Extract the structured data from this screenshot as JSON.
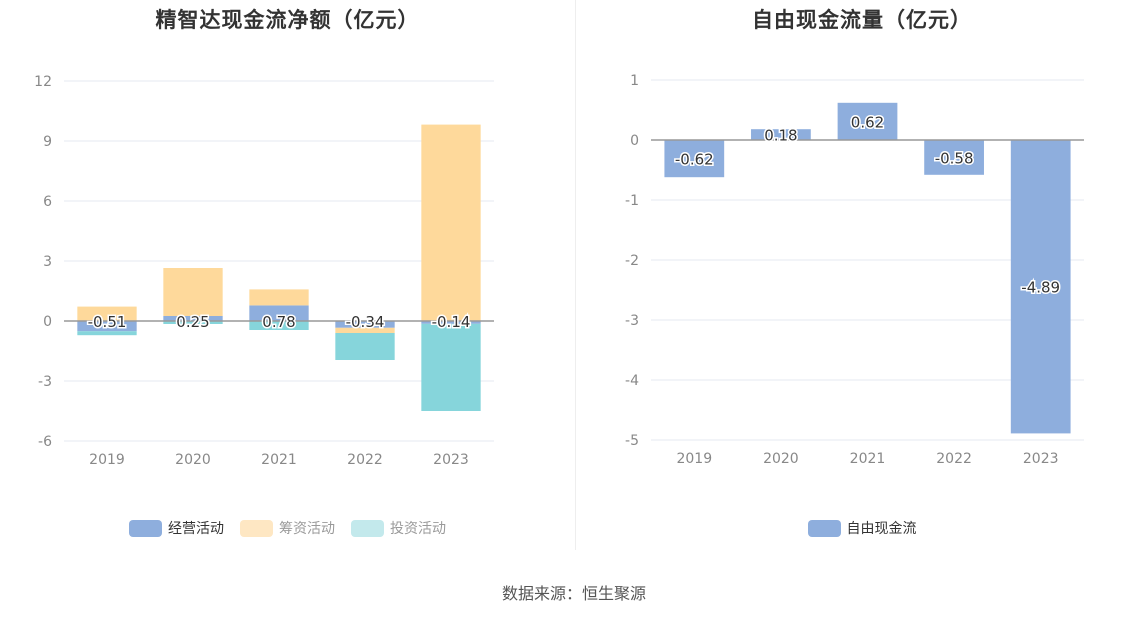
{
  "colors": {
    "operating": "#8eaedd",
    "financing": "#fed99b",
    "investing": "#86d5db",
    "free_cash_flow": "#8eaedd",
    "zero_axis": "#999999",
    "grid": "#e6e8f0"
  },
  "source": "数据来源：恒生聚源",
  "chart_data": [
    {
      "type": "bar",
      "stacked": true,
      "title": "精智达现金流净额（亿元）",
      "categories": [
        "2019",
        "2020",
        "2021",
        "2022",
        "2023"
      ],
      "ylim": [
        -6,
        12
      ],
      "yticks": [
        12,
        9,
        6,
        3,
        0,
        -3,
        -6
      ],
      "grid": true,
      "legend_position": "bottom",
      "series": [
        {
          "name": "经营活动",
          "values": [
            -0.51,
            0.25,
            0.78,
            -0.34,
            -0.14
          ],
          "labels": [
            "-0.51",
            "0.25",
            "0.78",
            "-0.34",
            "-0.14"
          ]
        },
        {
          "name": "筹资活动",
          "values": [
            0.72,
            2.4,
            0.8,
            -0.26,
            9.82
          ]
        },
        {
          "name": "投资活动",
          "values": [
            -0.2,
            -0.15,
            -0.45,
            -1.35,
            -4.36
          ]
        }
      ]
    },
    {
      "type": "bar",
      "title": "自由现金流量（亿元）",
      "categories": [
        "2019",
        "2020",
        "2021",
        "2022",
        "2023"
      ],
      "ylim": [
        -5,
        1
      ],
      "yticks": [
        1,
        0,
        -1,
        -2,
        -3,
        -4,
        -5
      ],
      "grid": true,
      "legend_position": "bottom",
      "series": [
        {
          "name": "自由现金流",
          "values": [
            -0.62,
            0.18,
            0.62,
            -0.58,
            -4.89
          ],
          "labels": [
            "-0.62",
            "0.18",
            "0.62",
            "-0.58",
            "-4.89"
          ]
        }
      ]
    }
  ]
}
